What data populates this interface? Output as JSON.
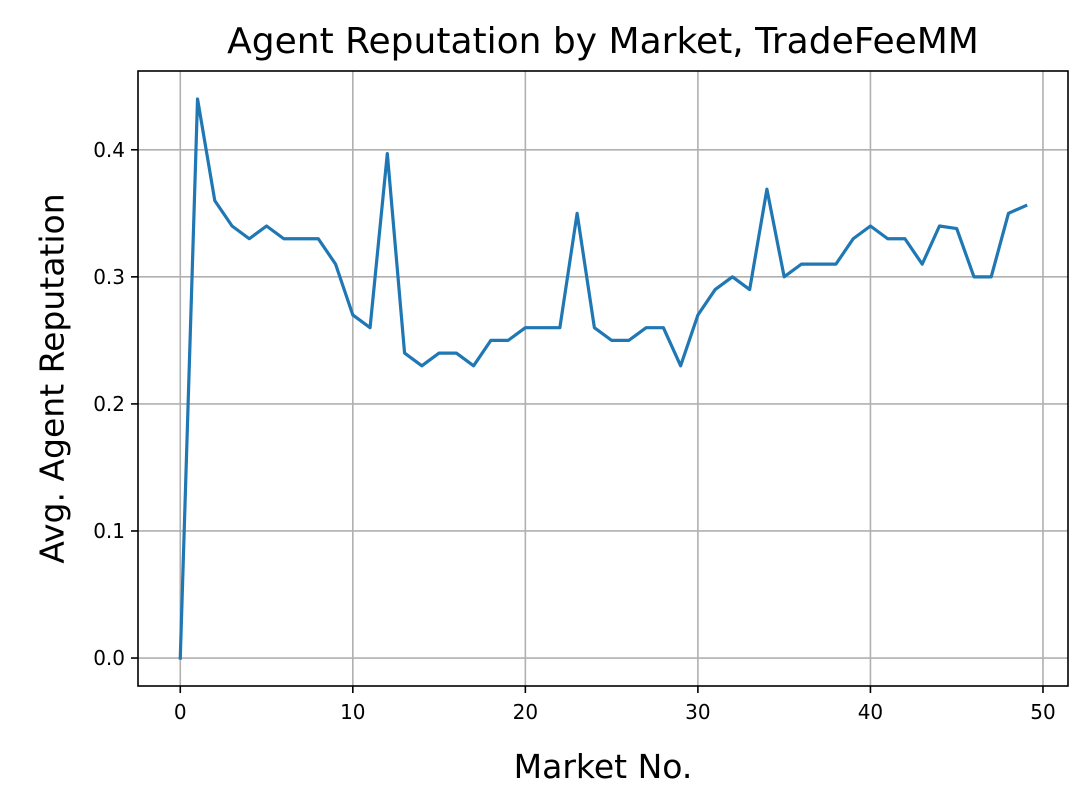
{
  "chart_data": {
    "type": "line",
    "title": "Agent Reputation by Market, TradeFeeMM",
    "xlabel": "Market No.",
    "ylabel": "Avg. Agent Reputation",
    "xlim": [
      -2.45,
      51.45
    ],
    "ylim": [
      -0.022,
      0.462
    ],
    "xticks": [
      0,
      10,
      20,
      30,
      40,
      50
    ],
    "yticks": [
      0.0,
      0.1,
      0.2,
      0.3,
      0.4
    ],
    "xtick_labels": [
      "0",
      "10",
      "20",
      "30",
      "40",
      "50"
    ],
    "ytick_labels": [
      "0.0",
      "0.1",
      "0.2",
      "0.3",
      "0.4"
    ],
    "grid": true,
    "series": [
      {
        "color": "#1f77b4",
        "x": [
          0,
          1,
          2,
          3,
          4,
          5,
          6,
          7,
          8,
          9,
          10,
          11,
          12,
          13,
          14,
          15,
          16,
          17,
          18,
          19,
          20,
          21,
          22,
          23,
          24,
          25,
          26,
          27,
          28,
          29,
          30,
          31,
          32,
          33,
          34,
          35,
          36,
          37,
          38,
          39,
          40,
          41,
          42,
          43,
          44,
          45,
          46,
          47,
          48,
          49
        ],
        "y": [
          0.0,
          0.44,
          0.36,
          0.34,
          0.33,
          0.34,
          0.33,
          0.33,
          0.33,
          0.31,
          0.27,
          0.26,
          0.397,
          0.24,
          0.23,
          0.24,
          0.24,
          0.23,
          0.25,
          0.25,
          0.26,
          0.26,
          0.26,
          0.35,
          0.26,
          0.25,
          0.25,
          0.26,
          0.26,
          0.23,
          0.27,
          0.29,
          0.3,
          0.29,
          0.369,
          0.3,
          0.31,
          0.31,
          0.31,
          0.33,
          0.34,
          0.33,
          0.33,
          0.31,
          0.34,
          0.338,
          0.3,
          0.3,
          0.35,
          0.356
        ]
      }
    ]
  }
}
